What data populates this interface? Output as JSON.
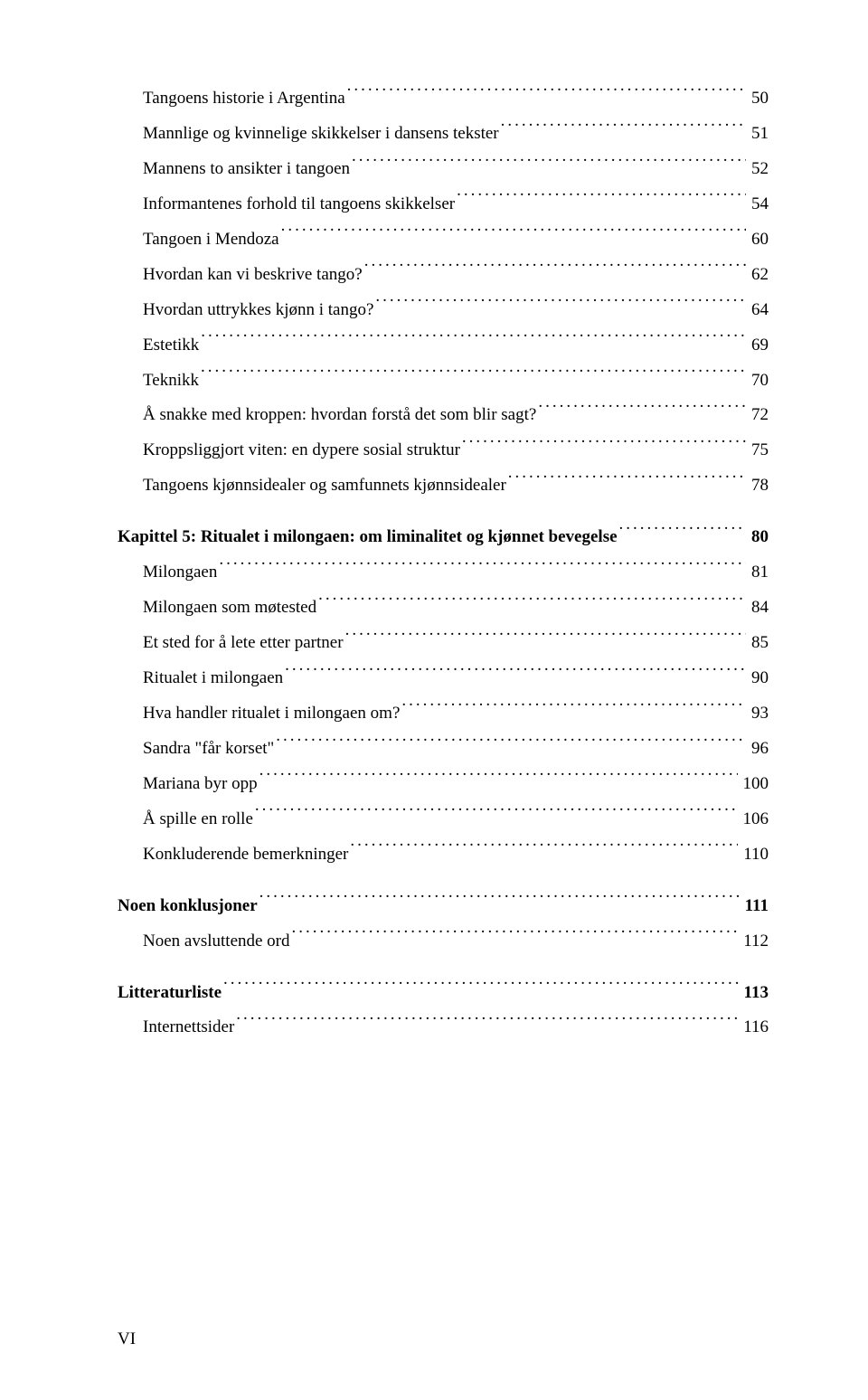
{
  "toc": [
    {
      "label": "Tangoens historie i Argentina",
      "page": "50",
      "indent": 1,
      "bold": false,
      "gap": false
    },
    {
      "label": "Mannlige og kvinnelige skikkelser i dansens tekster",
      "page": "51",
      "indent": 1,
      "bold": false,
      "gap": false
    },
    {
      "label": "Mannens to ansikter i tangoen",
      "page": "52",
      "indent": 1,
      "bold": false,
      "gap": false
    },
    {
      "label": "Informantenes forhold til tangoens skikkelser",
      "page": "54",
      "indent": 1,
      "bold": false,
      "gap": false
    },
    {
      "label": "Tangoen i Mendoza",
      "page": "60",
      "indent": 1,
      "bold": false,
      "gap": false
    },
    {
      "label": "Hvordan kan vi beskrive tango?",
      "page": "62",
      "indent": 1,
      "bold": false,
      "gap": false
    },
    {
      "label": "Hvordan uttrykkes kjønn i tango?",
      "page": "64",
      "indent": 1,
      "bold": false,
      "gap": false
    },
    {
      "label": "Estetikk",
      "page": "69",
      "indent": 1,
      "bold": false,
      "gap": false
    },
    {
      "label": "Teknikk",
      "page": "70",
      "indent": 1,
      "bold": false,
      "gap": false
    },
    {
      "label": "Å snakke med kroppen: hvordan forstå det som blir sagt?",
      "page": "72",
      "indent": 1,
      "bold": false,
      "gap": false
    },
    {
      "label": "Kroppsliggjort viten: en dypere sosial struktur",
      "page": "75",
      "indent": 1,
      "bold": false,
      "gap": false
    },
    {
      "label": "Tangoens kjønnsidealer og samfunnets kjønnsidealer",
      "page": "78",
      "indent": 1,
      "bold": false,
      "gap": false
    },
    {
      "label": "Kapittel 5: Ritualet i milongaen: om liminalitet og kjønnet bevegelse",
      "page": "80",
      "indent": 0,
      "bold": true,
      "gap": true
    },
    {
      "label": "Milongaen",
      "page": "81",
      "indent": 1,
      "bold": false,
      "gap": false
    },
    {
      "label": "Milongaen som møtested",
      "page": "84",
      "indent": 1,
      "bold": false,
      "gap": false
    },
    {
      "label": "Et sted for å lete etter partner",
      "page": "85",
      "indent": 1,
      "bold": false,
      "gap": false
    },
    {
      "label": "Ritualet i milongaen",
      "page": "90",
      "indent": 1,
      "bold": false,
      "gap": false
    },
    {
      "label": "Hva handler ritualet i milongaen om?",
      "page": "93",
      "indent": 1,
      "bold": false,
      "gap": false
    },
    {
      "label": "Sandra \"får korset\"",
      "page": "96",
      "indent": 1,
      "bold": false,
      "gap": false
    },
    {
      "label": "Mariana byr opp",
      "page": "100",
      "indent": 1,
      "bold": false,
      "gap": false
    },
    {
      "label": "Å spille en rolle",
      "page": "106",
      "indent": 1,
      "bold": false,
      "gap": false
    },
    {
      "label": "Konkluderende bemerkninger",
      "page": "110",
      "indent": 1,
      "bold": false,
      "gap": false
    },
    {
      "label": "Noen konklusjoner",
      "page": "111",
      "indent": 0,
      "bold": true,
      "gap": true
    },
    {
      "label": "Noen avsluttende ord",
      "page": "112",
      "indent": 1,
      "bold": false,
      "gap": false
    },
    {
      "label": "Litteraturliste",
      "page": "113",
      "indent": 0,
      "bold": true,
      "gap": true
    },
    {
      "label": "Internettsider",
      "page": "116",
      "indent": 1,
      "bold": false,
      "gap": false
    }
  ],
  "footer": "VI"
}
